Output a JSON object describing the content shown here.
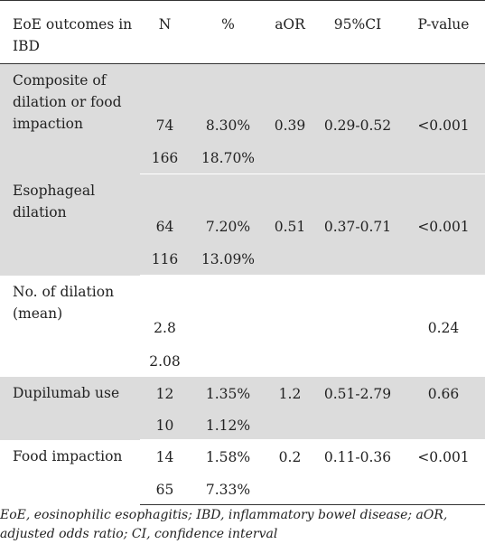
{
  "header": {
    "col1": "EoE outcomes in IBD",
    "col2": "N",
    "col3": "%",
    "col4": "aOR",
    "col5": "95%CI",
    "col6": "P-value"
  },
  "rows": [
    {
      "outcome": "Composite of dilation or food impaction",
      "main": {
        "n": "74",
        "pct": "8.30%",
        "aor": "0.39",
        "ci": "0.29-0.52",
        "p": "<0.001"
      },
      "sub": {
        "n": "166",
        "pct": "18.70%"
      }
    },
    {
      "outcome": "Esophageal dilation",
      "main": {
        "n": "64",
        "pct": "7.20%",
        "aor": "0.51",
        "ci": "0.37-0.71",
        "p": "<0.001"
      },
      "sub": {
        "n": "116",
        "pct": "13.09%"
      }
    },
    {
      "outcome": "No. of dilation (mean)",
      "main": {
        "n": "2.8",
        "pct": "",
        "aor": "",
        "ci": "",
        "p": "0.24"
      },
      "sub": {
        "n": "2.08",
        "pct": ""
      }
    },
    {
      "outcome": "Dupilumab use",
      "main": {
        "n": "12",
        "pct": "1.35%",
        "aor": "1.2",
        "ci": "0.51-2.79",
        "p": "0.66"
      },
      "sub": {
        "n": "10",
        "pct": "1.12%"
      }
    },
    {
      "outcome": "Food impaction",
      "main": {
        "n": "14",
        "pct": "1.58%",
        "aor": "0.2",
        "ci": "0.11-0.36",
        "p": "<0.001"
      },
      "sub": {
        "n": "65",
        "pct": "7.33%"
      }
    }
  ],
  "footnote": "EoE, eosinophilic esophagitis; IBD, inflammatory bowel disease; aOR, adjusted odds ratio; CI, confidence interval",
  "colors": {
    "shade": "#dcdcdc",
    "text": "#222222",
    "rule": "#333333"
  }
}
